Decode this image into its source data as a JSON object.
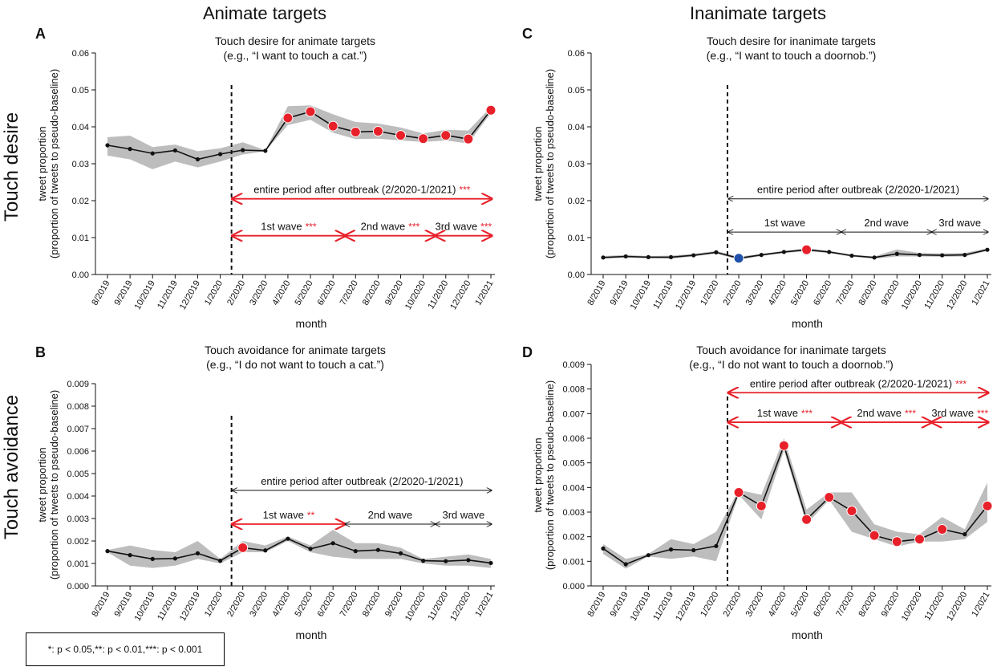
{
  "column_titles": [
    "Animate targets",
    "Inanimate targets"
  ],
  "row_titles": [
    "Touch desire",
    "Touch avoidance"
  ],
  "legend": {
    "sig1_mark": "*",
    "sig1_text": ": p < 0.05, ",
    "sig2_mark": "**",
    "sig2_text": ": p < 0.01, ",
    "sig3_mark": "***",
    "sig3_text": " : p < 0.001"
  },
  "colors": {
    "line": "#111111",
    "band": "#bdbdbd",
    "sig_up": "#e8202a",
    "sig_down": "#1f4fa8",
    "sig_arrow": "#e8202a",
    "nonsig_arrow": "#111111"
  },
  "chart_data": [
    {
      "id": "A",
      "type": "line",
      "title": "Touch desire for animate targets",
      "subtitle": "(e.g., “I want to touch a cat.”)",
      "xlabel": "month",
      "ylabel": "tweet proportion",
      "ylabel2": "(proportion of tweets to pseudo-baseline)",
      "x": [
        "8/2019",
        "9/2019",
        "10/2019",
        "11/2019",
        "12/2019",
        "1/2020",
        "2/2020",
        "3/2020",
        "4/2020",
        "5/2020",
        "6/2020",
        "7/2020",
        "8/2020",
        "9/2020",
        "10/2020",
        "11/2020",
        "12/2020",
        "1/2021"
      ],
      "ylim": [
        0,
        0.06
      ],
      "yticks": [
        0.0,
        0.01,
        0.02,
        0.03,
        0.04,
        0.05,
        0.06
      ],
      "ytick_labels": [
        "0.00",
        "0.01",
        "0.02",
        "0.03",
        "0.04",
        "0.05",
        "0.06"
      ],
      "values": [
        0.035,
        0.034,
        0.0328,
        0.0336,
        0.0312,
        0.0326,
        0.0337,
        0.0335,
        0.0424,
        0.0441,
        0.0402,
        0.0386,
        0.0388,
        0.0377,
        0.0368,
        0.0377,
        0.0367,
        0.0445
      ],
      "lower": [
        0.0322,
        0.0312,
        0.0285,
        0.0306,
        0.029,
        0.0306,
        0.0325,
        0.0334,
        0.0405,
        0.0419,
        0.0384,
        0.0367,
        0.0368,
        0.0363,
        0.0359,
        0.0363,
        0.0355,
        0.0437
      ],
      "upper": [
        0.0372,
        0.0376,
        0.0345,
        0.0352,
        0.0334,
        0.0342,
        0.0358,
        0.0337,
        0.0456,
        0.0458,
        0.0434,
        0.0413,
        0.0409,
        0.0398,
        0.0382,
        0.0392,
        0.039,
        0.0454
      ],
      "markers": [
        "dot",
        "dot",
        "dot",
        "dot",
        "dot",
        "dot",
        "dot",
        "dot",
        "up",
        "up",
        "up",
        "up",
        "up",
        "up",
        "up",
        "up",
        "up",
        "up"
      ],
      "outbreak_index": 5.5,
      "annotations": [
        {
          "label": "entire period after outbreak (2/2020-1/2021)",
          "stars": "***",
          "value": 0.0205,
          "from": 5.5,
          "to": 17,
          "sig": true
        },
        {
          "label": "1st wave",
          "stars": "***",
          "value": 0.0105,
          "from": 5.5,
          "to": 10.5,
          "sig": true
        },
        {
          "label": "2nd wave",
          "stars": "***",
          "value": 0.0105,
          "from": 10.5,
          "to": 14.5,
          "sig": true
        },
        {
          "label": "3rd wave",
          "stars": "***",
          "value": 0.0105,
          "from": 14.5,
          "to": 17,
          "sig": true
        }
      ]
    },
    {
      "id": "C",
      "type": "line",
      "title": "Touch desire for inanimate targets",
      "subtitle": "(e.g., “I want to touch a doornob.”)",
      "xlabel": "month",
      "ylabel": "tweet proportion",
      "ylabel2": "(proportion of tweets to pseudo-baseline)",
      "x": [
        "8/2019",
        "9/2019",
        "10/2019",
        "11/2019",
        "12/2019",
        "1/2020",
        "2/2020",
        "3/2020",
        "4/2020",
        "5/2020",
        "6/2020",
        "7/2020",
        "8/2020",
        "9/2020",
        "10/2020",
        "11/2020",
        "12/2020",
        "1/2021"
      ],
      "ylim": [
        0,
        0.06
      ],
      "yticks": [
        0.0,
        0.01,
        0.02,
        0.03,
        0.04,
        0.05,
        0.06
      ],
      "ytick_labels": [
        "0.00",
        "0.01",
        "0.02",
        "0.03",
        "0.04",
        "0.05",
        "0.06"
      ],
      "values": [
        0.0046,
        0.0049,
        0.0047,
        0.0047,
        0.0052,
        0.006,
        0.0044,
        0.0053,
        0.0061,
        0.0067,
        0.0061,
        0.0051,
        0.0046,
        0.0056,
        0.0053,
        0.0052,
        0.0053,
        0.0067
      ],
      "lower": [
        0.0043,
        0.0045,
        0.0044,
        0.0043,
        0.0049,
        0.0057,
        0.004,
        0.005,
        0.0058,
        0.0063,
        0.0058,
        0.0048,
        0.0043,
        0.0049,
        0.0049,
        0.0048,
        0.0049,
        0.0064
      ],
      "upper": [
        0.005,
        0.0053,
        0.005,
        0.0051,
        0.0056,
        0.0064,
        0.0048,
        0.0056,
        0.0064,
        0.0071,
        0.0064,
        0.0054,
        0.0049,
        0.0068,
        0.0058,
        0.0057,
        0.0058,
        0.0071
      ],
      "markers": [
        "dot",
        "dot",
        "dot",
        "dot",
        "dot",
        "dot",
        "down",
        "dot",
        "dot",
        "up",
        "dot",
        "dot",
        "dot",
        "dot",
        "dot",
        "dot",
        "dot",
        "dot"
      ],
      "outbreak_index": 5.5,
      "annotations": [
        {
          "label": "entire period after outbreak (2/2020-1/2021)",
          "stars": "",
          "value": 0.0205,
          "from": 5.5,
          "to": 17,
          "sig": false
        },
        {
          "label": "1st wave",
          "stars": "",
          "value": 0.0115,
          "from": 5.5,
          "to": 10.5,
          "sig": false
        },
        {
          "label": "2nd wave",
          "stars": "",
          "value": 0.0115,
          "from": 10.5,
          "to": 14.5,
          "sig": false
        },
        {
          "label": "3rd wave",
          "stars": "",
          "value": 0.0115,
          "from": 14.5,
          "to": 17,
          "sig": false
        }
      ]
    },
    {
      "id": "B",
      "type": "line",
      "title": "Touch avoidance for animate targets",
      "subtitle": "(e.g., “I do not want to touch a cat.”)",
      "xlabel": "month",
      "ylabel": "tweet proportion",
      "ylabel2": "(proportion of tweets to pseudo-baseline)",
      "x": [
        "8/2019",
        "9/2019",
        "10/2019",
        "11/2019",
        "12/2019",
        "1/2020",
        "2/2020",
        "3/2020",
        "4/2020",
        "5/2020",
        "6/2020",
        "7/2020",
        "8/2020",
        "9/2020",
        "10/2020",
        "11/2020",
        "12/2020",
        "1/2021"
      ],
      "ylim": [
        0,
        0.009
      ],
      "yticks": [
        0.0,
        0.001,
        0.002,
        0.003,
        0.004,
        0.005,
        0.006,
        0.007,
        0.008,
        0.009
      ],
      "ytick_labels": [
        "0.000",
        "0.001",
        "0.002",
        "0.003",
        "0.004",
        "0.005",
        "0.006",
        "0.007",
        "0.008",
        "0.009"
      ],
      "values": [
        0.00155,
        0.00137,
        0.0012,
        0.00122,
        0.00145,
        0.00112,
        0.0017,
        0.00158,
        0.0021,
        0.00165,
        0.0019,
        0.00155,
        0.0016,
        0.00145,
        0.00112,
        0.0011,
        0.00115,
        0.00102
      ],
      "lower": [
        0.0015,
        0.0009,
        0.0008,
        0.0009,
        0.0012,
        0.001,
        0.0015,
        0.0015,
        0.002,
        0.0015,
        0.0013,
        0.0012,
        0.0012,
        0.0012,
        0.001,
        0.0009,
        0.0009,
        0.0008
      ],
      "upper": [
        0.0016,
        0.0018,
        0.0016,
        0.0015,
        0.002,
        0.0012,
        0.002,
        0.0018,
        0.0022,
        0.0018,
        0.0025,
        0.0019,
        0.0019,
        0.0017,
        0.0012,
        0.0013,
        0.0014,
        0.0012
      ],
      "markers": [
        "dot",
        "dot",
        "dot",
        "dot",
        "dot",
        "dot",
        "up",
        "dot",
        "dot",
        "dot",
        "dot",
        "dot",
        "dot",
        "dot",
        "dot",
        "dot",
        "dot",
        "dot"
      ],
      "outbreak_index": 5.5,
      "annotations": [
        {
          "label": "entire period after outbreak (2/2020-1/2021)",
          "stars": "",
          "value": 0.00425,
          "from": 5.5,
          "to": 17,
          "sig": false
        },
        {
          "label": "1st wave",
          "stars": "**",
          "value": 0.00275,
          "from": 5.5,
          "to": 10.5,
          "sig": true
        },
        {
          "label": "2nd wave",
          "stars": "",
          "value": 0.00275,
          "from": 10.5,
          "to": 14.5,
          "sig": false
        },
        {
          "label": "3rd wave",
          "stars": "",
          "value": 0.00275,
          "from": 14.5,
          "to": 17,
          "sig": false
        }
      ]
    },
    {
      "id": "D",
      "type": "line",
      "title": "Touch avoidance for inanimate targets",
      "subtitle": "(e.g., “I do not want to touch a doornob.”)",
      "xlabel": "month",
      "ylabel": "tweet proportion",
      "ylabel2": "(proportion of tweets to pseudo-baseline)",
      "x": [
        "8/2019",
        "9/2019",
        "10/2019",
        "11/2019",
        "12/2019",
        "1/2020",
        "2/2020",
        "3/2020",
        "4/2020",
        "5/2020",
        "6/2020",
        "7/2020",
        "8/2020",
        "9/2020",
        "10/2020",
        "11/2020",
        "12/2020",
        "1/2021"
      ],
      "ylim": [
        0,
        0.009
      ],
      "yticks": [
        0.0,
        0.001,
        0.002,
        0.003,
        0.004,
        0.005,
        0.006,
        0.007,
        0.008,
        0.009
      ],
      "ytick_labels": [
        "0.000",
        "0.001",
        "0.002",
        "0.003",
        "0.004",
        "0.005",
        "0.006",
        "0.007",
        "0.008",
        "0.009"
      ],
      "values": [
        0.00152,
        0.00088,
        0.00125,
        0.00148,
        0.00145,
        0.00162,
        0.0038,
        0.00325,
        0.0057,
        0.0027,
        0.0036,
        0.00305,
        0.00205,
        0.0018,
        0.0019,
        0.0023,
        0.0021,
        0.00325
      ],
      "lower": [
        0.0013,
        0.0007,
        0.0012,
        0.0011,
        0.0012,
        0.001,
        0.0037,
        0.0027,
        0.0055,
        0.0025,
        0.0035,
        0.0022,
        0.0019,
        0.0016,
        0.0018,
        0.0018,
        0.0019,
        0.0026
      ],
      "upper": [
        0.0017,
        0.0011,
        0.0013,
        0.0019,
        0.0017,
        0.0022,
        0.0039,
        0.0037,
        0.006,
        0.0031,
        0.0038,
        0.0038,
        0.0025,
        0.0022,
        0.0021,
        0.0028,
        0.0023,
        0.0042
      ],
      "markers": [
        "dot",
        "dot",
        "dot",
        "dot",
        "dot",
        "dot",
        "up",
        "up",
        "up",
        "up",
        "up",
        "up",
        "up",
        "up",
        "up",
        "up",
        "dot",
        "up"
      ],
      "outbreak_index": 5.5,
      "annotations": [
        {
          "label": "entire period after outbreak (2/2020-1/2021)",
          "stars": "***",
          "value": 0.00785,
          "from": 5.5,
          "to": 17,
          "sig": true
        },
        {
          "label": "1st wave",
          "stars": "***",
          "value": 0.00665,
          "from": 5.5,
          "to": 10.5,
          "sig": true
        },
        {
          "label": "2nd wave",
          "stars": "***",
          "value": 0.00665,
          "from": 10.5,
          "to": 14.5,
          "sig": true
        },
        {
          "label": "3rd wave",
          "stars": "***",
          "value": 0.00665,
          "from": 14.5,
          "to": 17,
          "sig": true
        }
      ]
    }
  ]
}
